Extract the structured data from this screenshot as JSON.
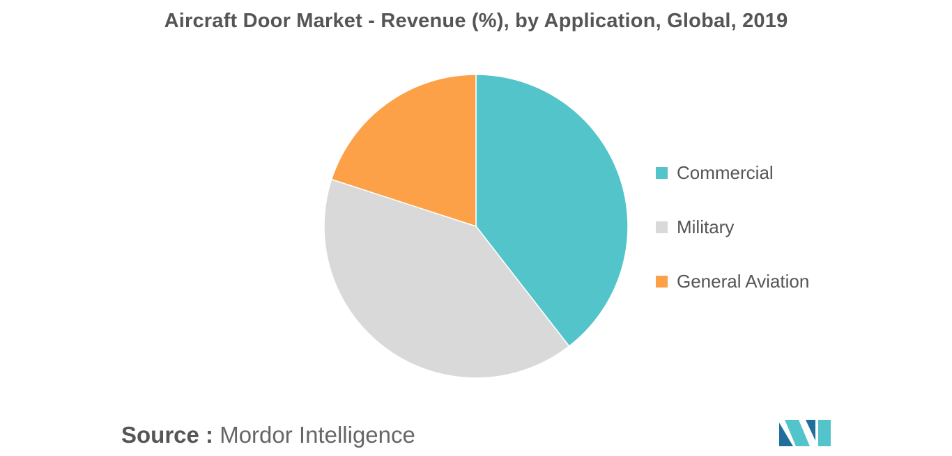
{
  "chart_data": {
    "type": "pie",
    "title": "Aircraft Door Market - Revenue (%), by Application, Global, 2019",
    "categories": [
      "Commercial",
      "Military",
      "General Aviation"
    ],
    "values": [
      39.5,
      40.5,
      20
    ],
    "colors": [
      "#52c4ca",
      "#d9d9d9",
      "#fca148"
    ],
    "start_angle_deg": 0,
    "direction": "clockwise",
    "legend_position": "right"
  },
  "source": {
    "prefix": "Source :",
    "name": "Mordor Intelligence"
  },
  "logo": {
    "description_icon": "mordor-intelligence-logo-icon",
    "colors": [
      "#1f6e9c",
      "#52c4ca"
    ]
  }
}
